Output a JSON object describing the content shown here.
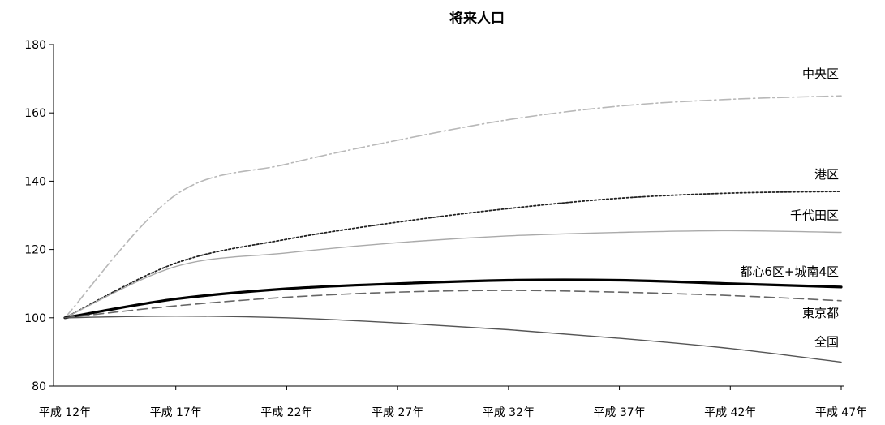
{
  "chart_data": {
    "type": "line",
    "title": "将来人口",
    "xlabel": "",
    "ylabel": "",
    "categories": [
      "平成 12年",
      "平成 17年",
      "平成 22年",
      "平成 27年",
      "平成 32年",
      "平成 37年",
      "平成 42年",
      "平成 47年"
    ],
    "ylim": [
      80,
      180
    ],
    "yticks": [
      80,
      100,
      120,
      140,
      160,
      180
    ],
    "grid": false,
    "legend": "inline-right",
    "series": [
      {
        "name": "中央区",
        "values": [
          100,
          136,
          145,
          152,
          158,
          162,
          164,
          165
        ],
        "color": "#b8b8b8",
        "style": "dash-dot"
      },
      {
        "name": "港区",
        "values": [
          100,
          116,
          123,
          128,
          132,
          135,
          136.5,
          137
        ],
        "color": "#222222",
        "style": "dotted"
      },
      {
        "name": "千代田区",
        "values": [
          100,
          115,
          119,
          122,
          124,
          125,
          125.5,
          125
        ],
        "color": "#aaaaaa",
        "style": "solid"
      },
      {
        "name": "都心6区+城南4区",
        "values": [
          100,
          105.5,
          108.5,
          110,
          111,
          111,
          110,
          109
        ],
        "color": "#000000",
        "style": "solid-thick"
      },
      {
        "name": "東京都",
        "values": [
          100,
          103.5,
          106,
          107.5,
          108,
          107.5,
          106.5,
          105
        ],
        "color": "#666666",
        "style": "dashed"
      },
      {
        "name": "全国",
        "values": [
          100,
          100.5,
          100,
          98.5,
          96.5,
          94,
          91,
          87
        ],
        "color": "#555555",
        "style": "solid"
      }
    ]
  }
}
